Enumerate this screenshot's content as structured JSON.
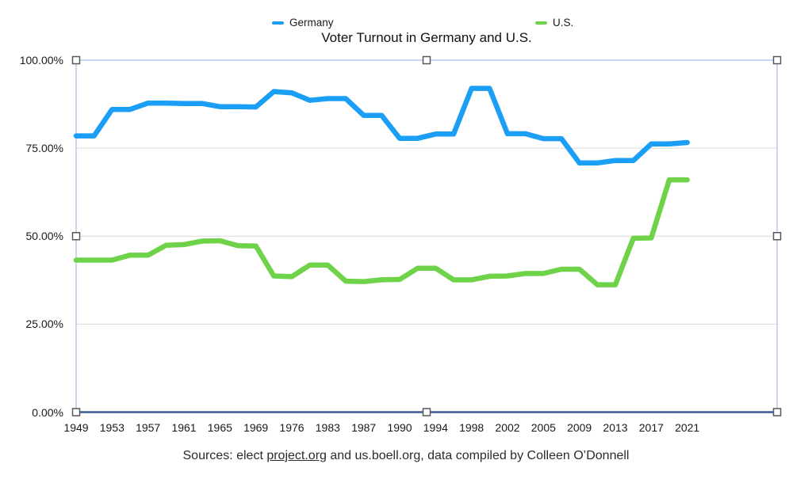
{
  "chart_data": {
    "type": "line",
    "title": "Voter Turnout in Germany and U.S.",
    "categories": [
      1949,
      1952,
      1953,
      1956,
      1957,
      1960,
      1961,
      1964,
      1965,
      1968,
      1969,
      1972,
      1976,
      1980,
      1983,
      1984,
      1987,
      1988,
      1990,
      1992,
      1994,
      1996,
      1998,
      2000,
      2002,
      2004,
      2005,
      2008,
      2009,
      2012,
      2013,
      2016,
      2017,
      2020,
      2021
    ],
    "series": [
      {
        "name": "Germany",
        "color": "#1b9ef5",
        "values": [
          78.5,
          78.5,
          86.0,
          86.0,
          87.8,
          87.8,
          87.7,
          87.7,
          86.8,
          86.8,
          86.7,
          91.1,
          90.7,
          88.6,
          89.1,
          89.1,
          84.3,
          84.3,
          77.8,
          77.8,
          79.0,
          79.0,
          92.0,
          92.0,
          79.1,
          79.1,
          77.7,
          77.7,
          70.8,
          70.8,
          71.5,
          71.5,
          76.2,
          76.2,
          76.6
        ]
      },
      {
        "name": "U.S.",
        "color": "#6fd34a",
        "values": [
          43.2,
          43.2,
          43.2,
          44.6,
          44.6,
          47.4,
          47.6,
          48.6,
          48.7,
          47.3,
          47.2,
          38.7,
          38.5,
          41.8,
          41.8,
          37.2,
          37.1,
          37.6,
          37.7,
          40.9,
          40.9,
          37.6,
          37.6,
          38.6,
          38.7,
          39.4,
          39.4,
          40.6,
          40.6,
          36.2,
          36.2,
          49.4,
          49.5,
          66.0,
          66.0
        ]
      }
    ],
    "x_tick_labels": [
      "1949",
      "1953",
      "1957",
      "1961",
      "1965",
      "1969",
      "1976",
      "1983",
      "1987",
      "1990",
      "1994",
      "1998",
      "2002",
      "2005",
      "2009",
      "2013",
      "2017",
      "2021"
    ],
    "y_ticks": [
      {
        "label": "0.00%",
        "value": 0
      },
      {
        "label": "25.00%",
        "value": 25
      },
      {
        "label": "50.00%",
        "value": 50
      },
      {
        "label": "75.00%",
        "value": 75
      },
      {
        "label": "100.00%",
        "value": 100
      }
    ],
    "ylim": [
      0,
      100
    ],
    "xlabel": "",
    "ylabel": "",
    "grid": true,
    "legend_position": "top-center",
    "grid_color": "#d9d9d9",
    "axis_color": "#3a5a94",
    "selection_color": "#b7c9f0",
    "selection_handle_border": "#58585a"
  },
  "caption": {
    "prefix": "Sources: elect ",
    "link": "project.org",
    "suffix": " and us.boell.org, data compiled by Colleen O’Donnell"
  }
}
